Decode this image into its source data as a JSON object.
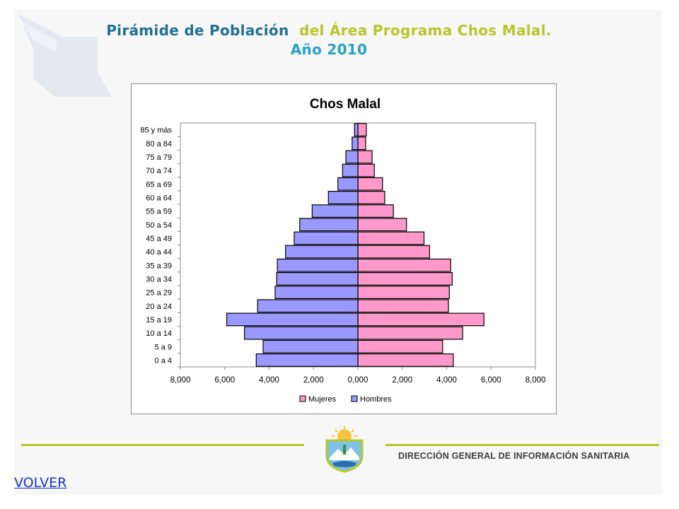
{
  "header": {
    "title_part1": "Pirámide de Población",
    "title_part2": "del Área Programa Chos Malal.",
    "title_year": "Año 2010"
  },
  "footer": {
    "organization": "DIRECCIÓN GENERAL DE INFORMACIÓN SANITARIA",
    "back_link": "VOLVER"
  },
  "colors": {
    "mujeres": "#ff99cc",
    "hombres": "#9999ff",
    "accent_green": "#b7c62b",
    "title_blue": "#1f6f97"
  },
  "chart_data": {
    "type": "bar",
    "orientation": "horizontal",
    "title": "Chos Malal",
    "categories": [
      "0 a 4",
      "5 a 9",
      "10 a 14",
      "15 a 19",
      "20 a 24",
      "25 a 29",
      "30 a 34",
      "35 a 39",
      "40 a 44",
      "45 a 49",
      "50 a 54",
      "55 a 59",
      "60 a 64",
      "65 a 69",
      "70 a 74",
      "75 a 79",
      "80 a 84",
      "85 y más"
    ],
    "series": [
      {
        "name": "Mujeres",
        "side": "right",
        "values": [
          4300,
          3820,
          4720,
          5680,
          4080,
          4120,
          4250,
          4180,
          3230,
          2980,
          2190,
          1600,
          1210,
          1110,
          740,
          640,
          350,
          380
        ]
      },
      {
        "name": "Hombres",
        "side": "left",
        "values": [
          4580,
          4270,
          5110,
          5910,
          4520,
          3730,
          3660,
          3630,
          3260,
          2870,
          2620,
          2060,
          1330,
          900,
          690,
          540,
          260,
          150
        ]
      }
    ],
    "xlim": [
      -8000,
      8000
    ],
    "xticks": [
      -8000,
      -6000,
      -4000,
      -2000,
      0,
      2000,
      4000,
      6000,
      8000
    ],
    "xtick_labels": [
      "8,000",
      "6,000",
      "4,000",
      "2,000",
      "0,000",
      "2,000",
      "4,000",
      "6,000",
      "8,000"
    ],
    "legend": "bottom",
    "grid": false
  }
}
